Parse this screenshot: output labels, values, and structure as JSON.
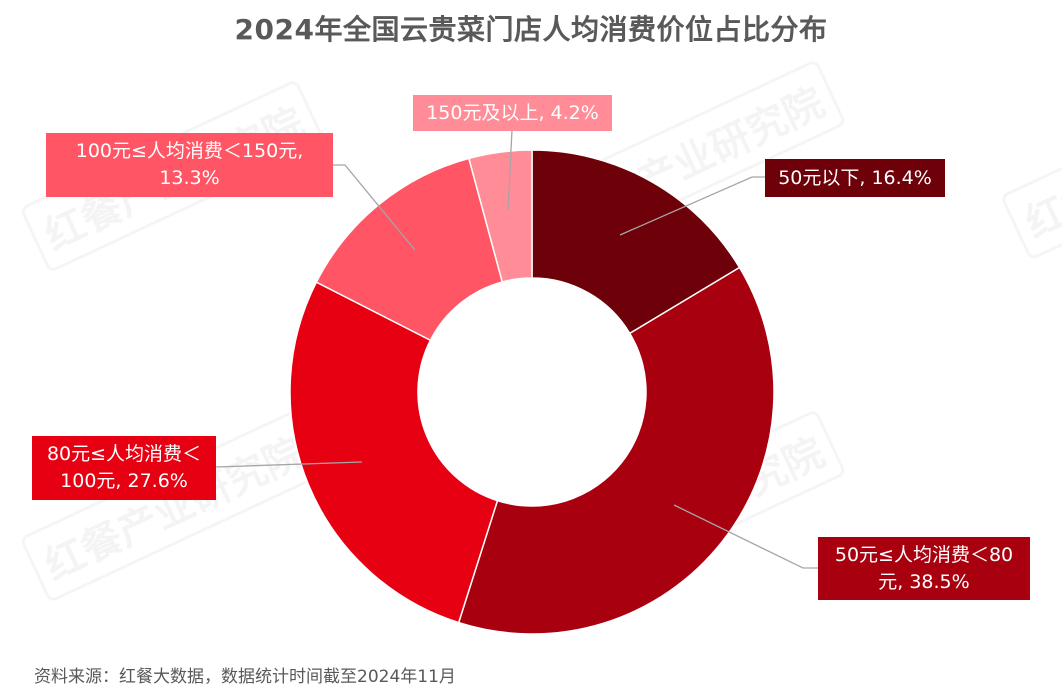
{
  "chart_data": {
    "type": "pie",
    "donut": true,
    "title": "2024年全国云贵菜门店人均消费价位占比分布",
    "slices": [
      {
        "label": "50元以下",
        "value": 16.4,
        "display": "50元以下, 16.4%",
        "color": "#6e0009"
      },
      {
        "label": "50元≤人均消费＜80元",
        "value": 38.5,
        "display": "50元≤人均消费＜80元, 38.5%",
        "color": "#a8000f"
      },
      {
        "label": "80元≤人均消费＜100元",
        "value": 27.6,
        "display": "80元≤人均消费＜100元, 27.6%",
        "color": "#e60012"
      },
      {
        "label": "100元≤人均消费＜150元",
        "value": 13.3,
        "display": "100元≤人均消费＜150元, 13.3%",
        "color": "#ff5565"
      },
      {
        "label": "150元及以上",
        "value": 4.2,
        "display": "150元及以上, 4.2%",
        "color": "#ff8c96"
      }
    ],
    "labels": {
      "s0": "50元以下, 16.4%",
      "s1a": "50元≤人均消费＜80",
      "s1b": "元, 38.5%",
      "s2a": "80元≤人均消费＜",
      "s2b": "100元, 27.6%",
      "s3a": "100元≤人均消费＜150元,",
      "s3b": "13.3%",
      "s4": "150元及以上, 4.2%"
    },
    "start_angle": "top, clockwise"
  },
  "source": "资料来源：红餐大数据，数据统计时间截至2024年11月",
  "watermark": "红餐产业研究院"
}
